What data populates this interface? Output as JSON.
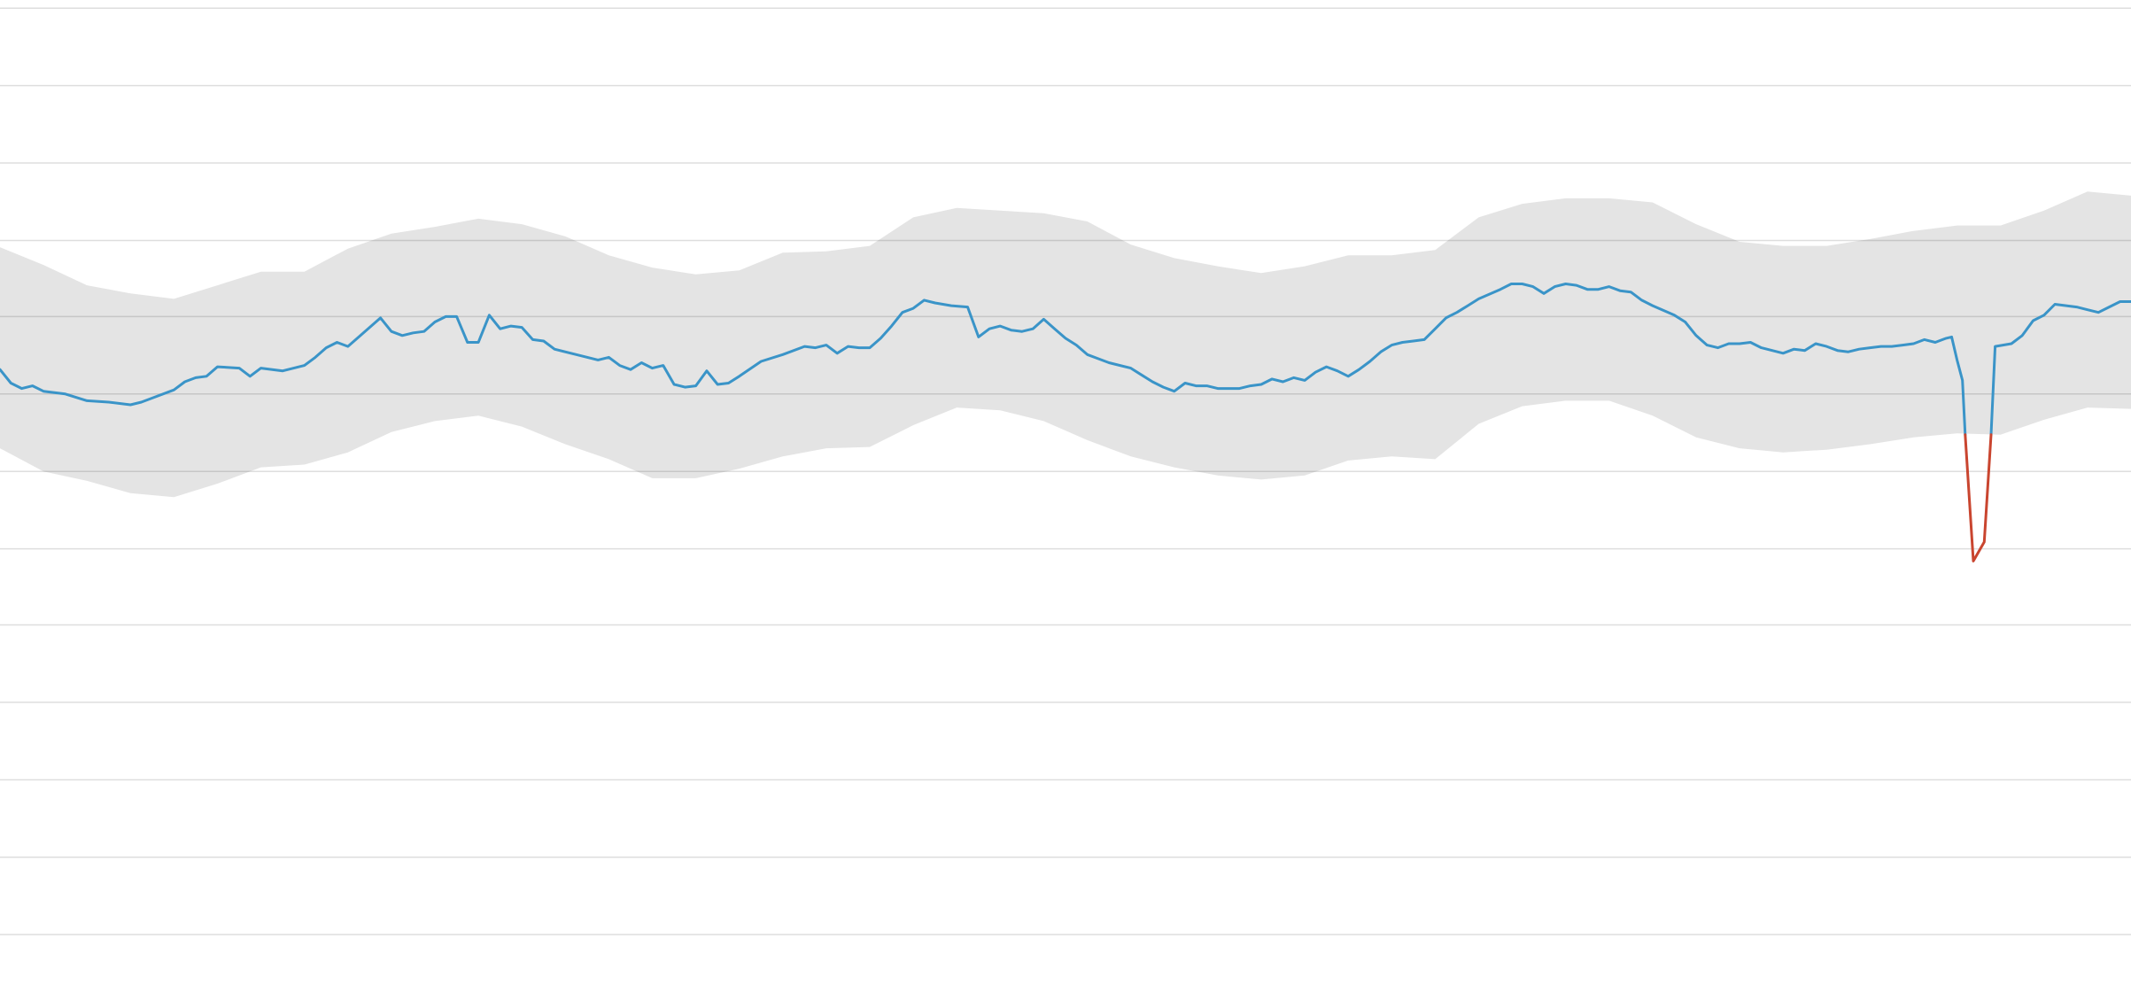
{
  "chart_data": {
    "type": "line",
    "grid": true,
    "xlim": [
      0,
      1568
    ],
    "ylim": [
      0,
      742
    ],
    "yticks": [
      54,
      111,
      168,
      225,
      282,
      338,
      395,
      452,
      509,
      565,
      622,
      679,
      736
    ],
    "band": {
      "color": "#e4e4e4",
      "x": [
        0,
        32,
        64,
        96,
        128,
        160,
        192,
        224,
        256,
        288,
        320,
        352,
        384,
        416,
        448,
        480,
        512,
        544,
        576,
        608,
        640,
        672,
        704,
        736,
        768,
        800,
        832,
        864,
        896,
        928,
        960,
        992,
        1024,
        1056,
        1088,
        1120,
        1152,
        1184,
        1216,
        1248,
        1280,
        1312,
        1344,
        1376,
        1408,
        1440,
        1472,
        1504,
        1536,
        1568
      ],
      "upper": [
        560,
        547,
        532,
        526,
        522,
        532,
        542,
        542,
        559,
        570,
        575,
        581,
        577,
        568,
        554,
        545,
        540,
        543,
        556,
        557,
        561,
        582,
        589,
        587,
        585,
        579,
        562,
        552,
        546,
        541,
        546,
        554,
        554,
        558,
        582,
        592,
        596,
        596,
        593,
        577,
        564,
        561,
        561,
        566,
        572,
        576,
        576,
        587,
        601,
        598
      ],
      "lower": [
        412,
        395,
        388,
        379,
        376,
        386,
        398,
        400,
        409,
        424,
        432,
        436,
        428,
        415,
        404,
        390,
        390,
        397,
        406,
        412,
        413,
        429,
        442,
        440,
        432,
        418,
        406,
        398,
        392,
        389,
        392,
        403,
        406,
        404,
        430,
        443,
        447,
        447,
        436,
        420,
        412,
        409,
        411,
        415,
        420,
        423,
        422,
        433,
        442,
        441
      ]
    },
    "series": [
      {
        "color": "#3a94c8",
        "x": [
          0,
          8,
          16,
          24,
          32,
          48,
          64,
          80,
          96,
          104,
          112,
          128,
          136,
          144,
          152,
          160,
          176,
          184,
          192,
          208,
          224,
          232,
          240,
          248,
          256,
          264,
          280,
          288,
          296,
          304,
          312,
          320,
          328,
          336,
          344,
          352,
          360,
          368,
          376,
          384,
          392,
          400,
          408,
          424,
          440,
          448,
          456,
          464,
          472,
          480,
          488,
          496,
          504,
          512,
          520,
          528,
          536,
          544,
          560,
          576,
          592,
          600,
          608,
          616,
          624,
          632,
          640,
          648,
          656,
          664,
          672,
          680,
          688,
          700,
          712,
          720,
          728,
          736,
          744,
          752,
          760,
          768,
          776,
          784,
          792,
          800,
          808,
          816,
          832,
          840,
          848,
          856,
          864,
          872,
          880,
          888,
          896,
          912,
          920,
          928,
          936,
          944,
          952,
          960,
          968,
          976,
          984,
          992,
          1000,
          1008,
          1016,
          1024,
          1032,
          1040,
          1048,
          1056,
          1064,
          1072,
          1080,
          1088,
          1104,
          1112,
          1120,
          1128,
          1136,
          1144,
          1152,
          1160,
          1168,
          1176,
          1184,
          1192,
          1200,
          1208,
          1216,
          1232,
          1240,
          1248,
          1256,
          1264,
          1272,
          1280,
          1288,
          1296,
          1304,
          1312,
          1320,
          1328,
          1336,
          1344,
          1352,
          1360,
          1368,
          1376,
          1384,
          1392,
          1400,
          1408,
          1416,
          1424,
          1432,
          1436,
          1440,
          1444,
          1446,
          1452,
          1460,
          1465,
          1468,
          1480,
          1488,
          1496,
          1504,
          1512,
          1528,
          1536,
          1544,
          1552,
          1560,
          1568
        ],
        "values": [
          470,
          460,
          456,
          458,
          454,
          452,
          447,
          446,
          444,
          446,
          449,
          455,
          461,
          464,
          465,
          472,
          471,
          465,
          471,
          469,
          473,
          479,
          486,
          490,
          487,
          494,
          508,
          498,
          495,
          497,
          498,
          505,
          509,
          509,
          490,
          490,
          510,
          500,
          502,
          501,
          492,
          491,
          485,
          481,
          477,
          479,
          473,
          470,
          475,
          471,
          473,
          459,
          457,
          458,
          469,
          459,
          460,
          465,
          476,
          481,
          487,
          486,
          488,
          482,
          487,
          486,
          486,
          493,
          502,
          512,
          515,
          521,
          519,
          517,
          516,
          494,
          500,
          502,
          499,
          498,
          500,
          507,
          500,
          493,
          488,
          481,
          478,
          475,
          471,
          466,
          461,
          457,
          454,
          460,
          458,
          458,
          456,
          456,
          458,
          459,
          463,
          461,
          464,
          462,
          468,
          472,
          469,
          465,
          470,
          476,
          483,
          488,
          490,
          491,
          492,
          500,
          508,
          512,
          517,
          522,
          529,
          533,
          533,
          531,
          526,
          531,
          533,
          532,
          529,
          529,
          531,
          528,
          527,
          521,
          517,
          510,
          505,
          495,
          488,
          486,
          489,
          489,
          490,
          486,
          484,
          482,
          485,
          484,
          489,
          487,
          484,
          483,
          485,
          486,
          487,
          487,
          488,
          489,
          492,
          490,
          493,
          494,
          477,
          462,
          422,
          null,
          null,
          422,
          487,
          489,
          495,
          506,
          510,
          518,
          516,
          514,
          512,
          516,
          520,
          520
        ]
      },
      {
        "color": "#c9452f",
        "x": [
          1446,
          1452,
          1460,
          1465
        ],
        "values": [
          422,
          329,
          343,
          422
        ]
      }
    ]
  }
}
